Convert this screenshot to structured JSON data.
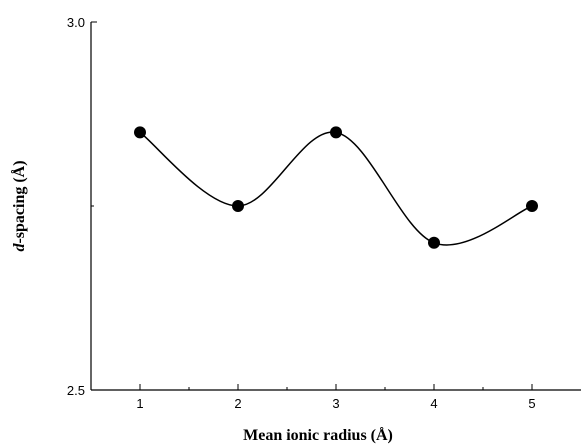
{
  "chart_data": {
    "type": "line",
    "xlabel": "Mean ionic radius (Å)",
    "ylabel_italic": "d",
    "ylabel_rest": "-spacing (Å)",
    "x": [
      1,
      2,
      3,
      4,
      5
    ],
    "series": [
      {
        "values": [
          2.85,
          2.75,
          2.85,
          2.7,
          2.75
        ]
      }
    ],
    "xlim": [
      0.5,
      5.5
    ],
    "ylim": [
      2.5,
      3.0
    ],
    "x_ticks": [
      1,
      2,
      3,
      4,
      5
    ],
    "x_tick_labels": [
      "1",
      "2",
      "3",
      "4",
      "5"
    ],
    "y_ticks": [
      2.5,
      3.0
    ],
    "y_tick_labels": [
      "2.5",
      "3.0"
    ],
    "y_minor_ticks": [
      2.75
    ],
    "marker": "filled-circle",
    "line": "smooth",
    "grid": false,
    "colors": {
      "line": "#000000",
      "marker": "#000000",
      "axis": "#000000"
    }
  }
}
